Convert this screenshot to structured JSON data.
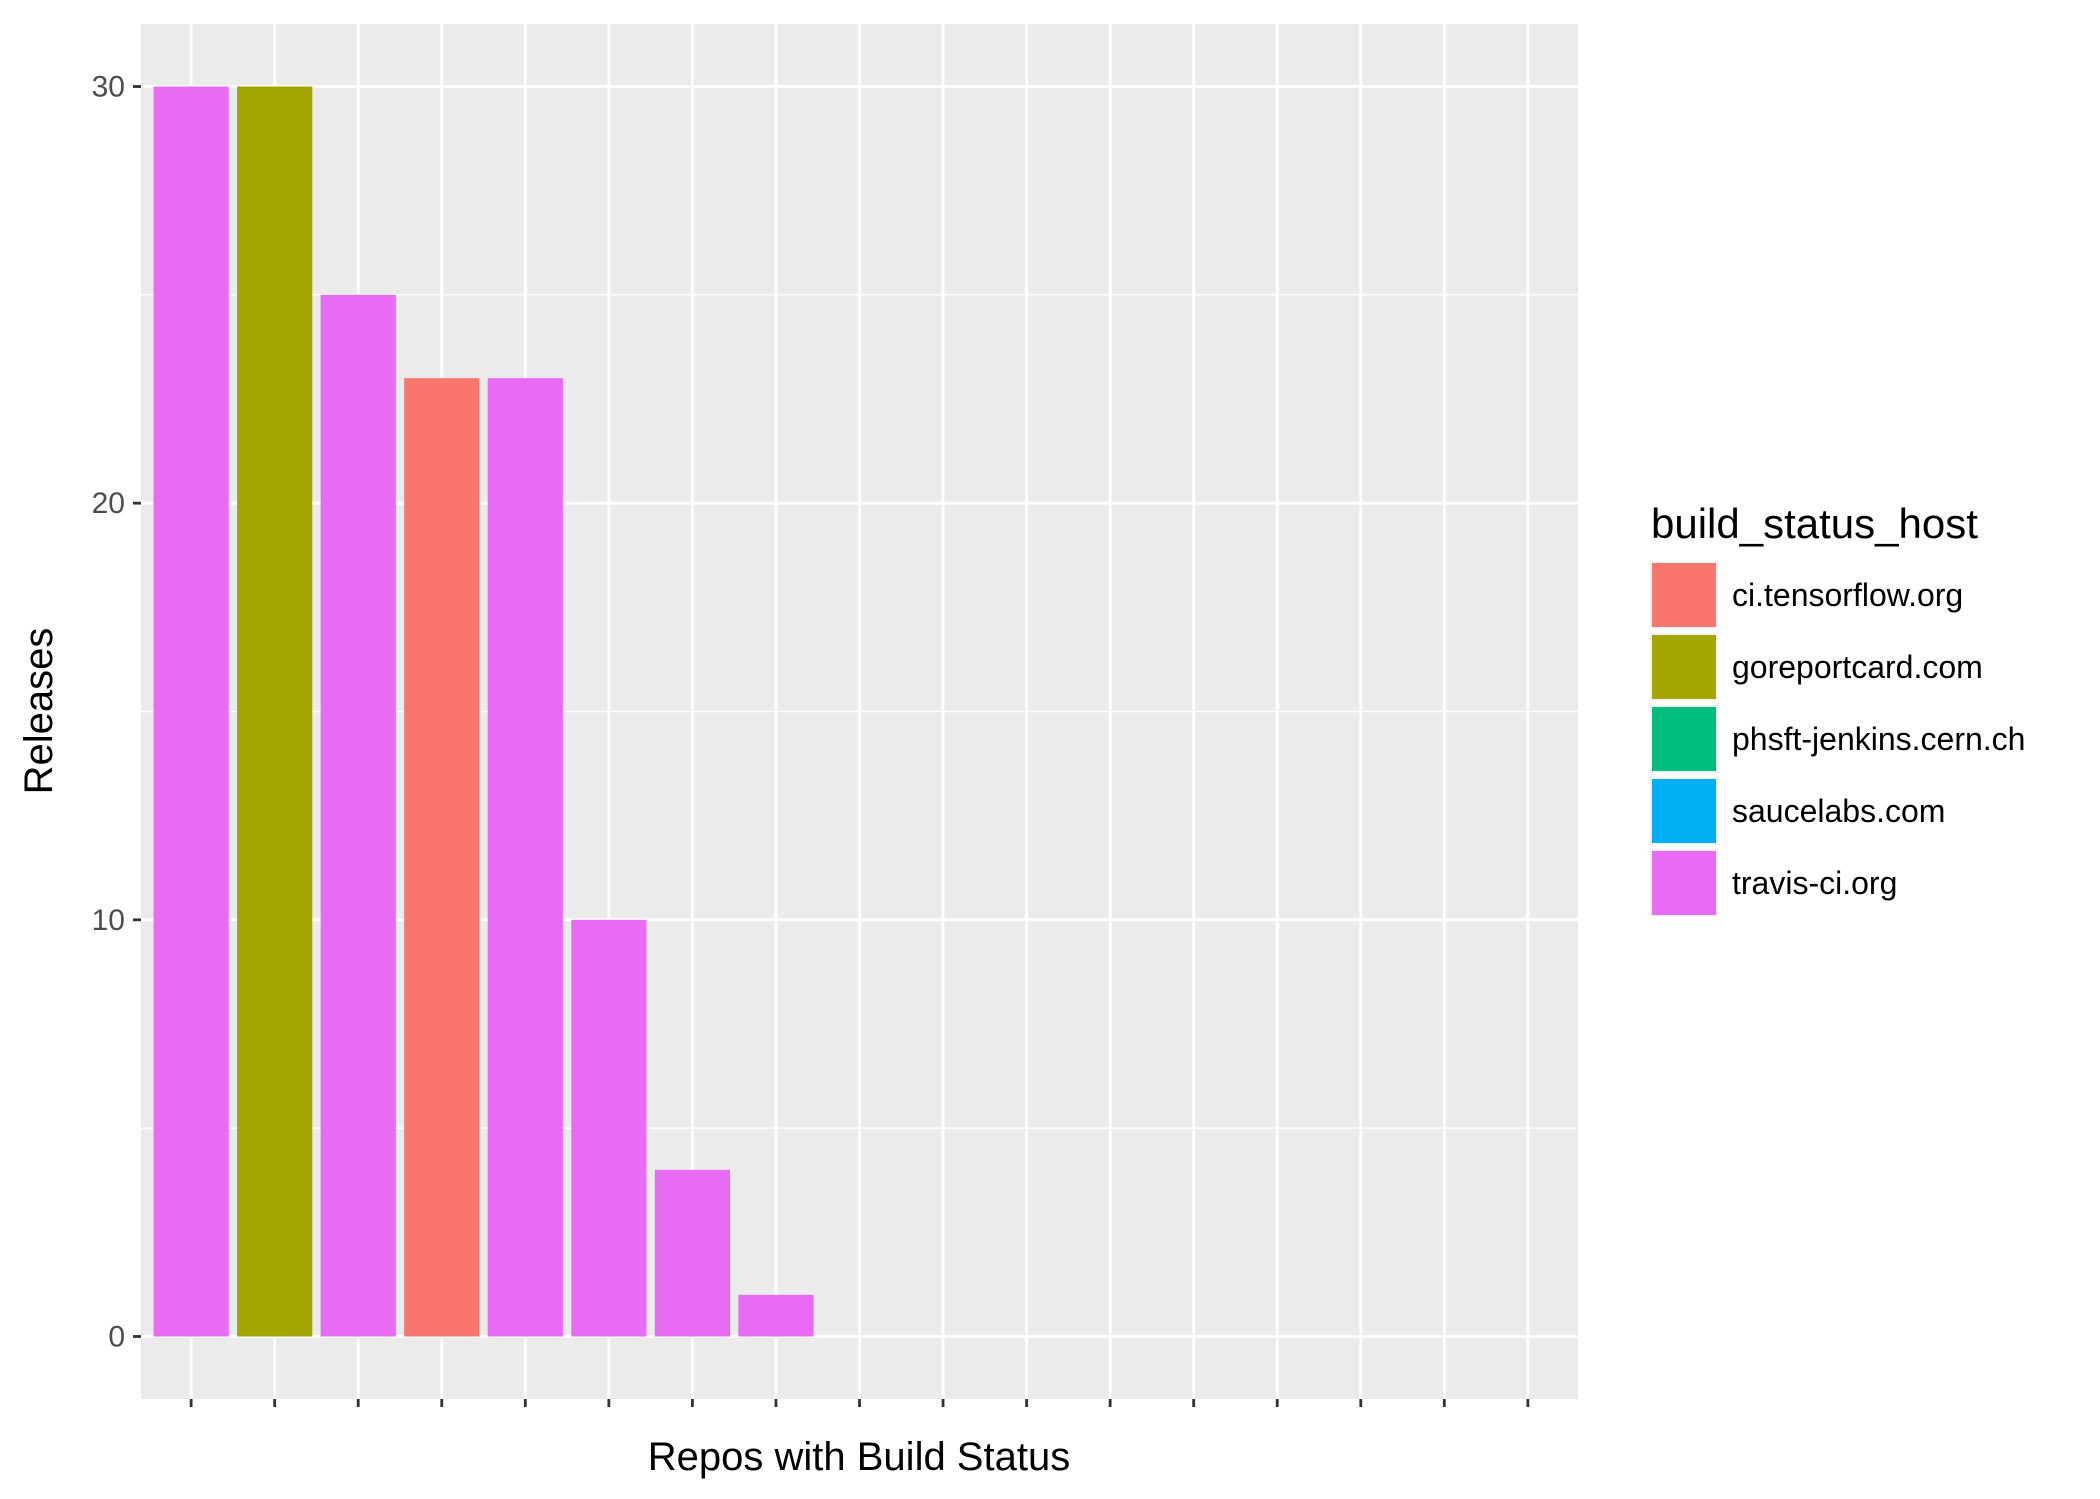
{
  "chart_data": {
    "type": "bar",
    "xlabel": "Repos with Build Status",
    "ylabel": "Releases",
    "ylim": [
      -1.5,
      31.5
    ],
    "yticks": [
      0,
      10,
      20,
      30
    ],
    "category_count": 17,
    "categories": [
      "",
      "",
      "",
      "",
      "",
      "",
      "",
      "",
      "",
      "",
      "",
      "",
      "",
      "",
      "",
      "",
      ""
    ],
    "values": [
      30,
      30,
      25,
      23,
      23,
      10,
      4,
      1,
      0,
      0,
      0,
      0,
      0,
      0,
      0,
      0,
      0
    ],
    "bar_hosts": [
      "travis-ci.org",
      "goreportcard.com",
      "travis-ci.org",
      "ci.tensorflow.org",
      "travis-ci.org",
      "travis-ci.org",
      "travis-ci.org",
      "travis-ci.org",
      null,
      null,
      null,
      null,
      null,
      null,
      null,
      null,
      null
    ],
    "grid": true,
    "legend": {
      "title": "build_status_host",
      "placement": "right",
      "entries": [
        {
          "label": "ci.tensorflow.org",
          "color": "#F8766D"
        },
        {
          "label": "goreportcard.com",
          "color": "#A3A500"
        },
        {
          "label": "phsft-jenkins.cern.ch",
          "color": "#00BF7D"
        },
        {
          "label": "saucelabs.com",
          "color": "#00B0F6"
        },
        {
          "label": "travis-ci.org",
          "color": "#E76BF3"
        }
      ]
    },
    "colors": {
      "panel_background": "#EBEBEB",
      "grid": "#FFFFFF",
      "tick": "#333333"
    }
  }
}
